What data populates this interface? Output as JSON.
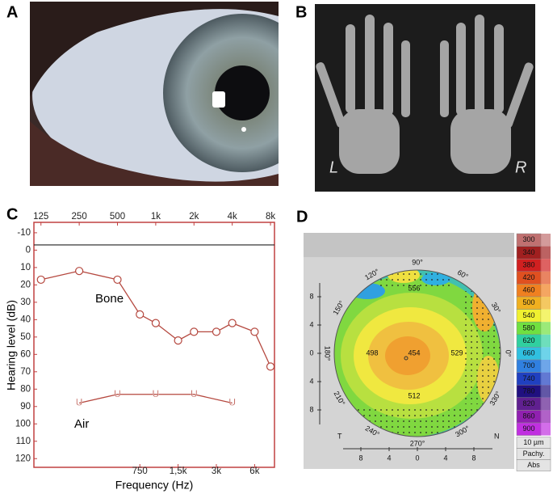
{
  "panels": {
    "A": {
      "label": "A"
    },
    "B": {
      "label": "B",
      "markers": [
        "L",
        "R"
      ]
    },
    "C": {
      "label": "C"
    },
    "D": {
      "label": "D"
    }
  },
  "chart_data": {
    "type": "line",
    "xlabel": "Frequency (Hz)",
    "ylabel": "Hearing level (dB)",
    "xlog": true,
    "xlim": [
      110,
      8600
    ],
    "ylim": [
      -16,
      125
    ],
    "xticks": [
      125,
      250,
      500,
      {
        "value": 1000,
        "label": "1k"
      },
      {
        "value": 2000,
        "label": "2k"
      },
      {
        "value": 4000,
        "label": "4k"
      },
      {
        "value": 8000,
        "label": "8k"
      }
    ],
    "xticks_bottom": [
      750,
      {
        "value": 1500,
        "label": "1,5k"
      },
      {
        "value": 3000,
        "label": "3k"
      },
      {
        "value": 6000,
        "label": "6k"
      }
    ],
    "yticks": [
      -10,
      0,
      10,
      20,
      30,
      40,
      50,
      60,
      70,
      80,
      90,
      100,
      110,
      120
    ],
    "hline": -3,
    "series": [
      {
        "name": "Bone",
        "color": "#b5483f",
        "marker": "circle",
        "x": [
          125,
          250,
          500,
          750,
          1000,
          1500,
          2000,
          3000,
          4000,
          6000,
          8000
        ],
        "values": [
          17,
          12,
          17,
          37,
          42,
          52,
          47,
          47,
          42,
          47,
          67
        ]
      },
      {
        "name": "Air",
        "color": "#b5483f",
        "marker": "U",
        "x": [
          250,
          500,
          1000,
          2000,
          4000
        ],
        "values": [
          88,
          83,
          83,
          83,
          88
        ]
      }
    ]
  },
  "pachymetry": {
    "xlim": [
      -12,
      12
    ],
    "ylim": [
      -12,
      12
    ],
    "xticks": [
      {
        "value": -8,
        "label": "8"
      },
      {
        "value": -4,
        "label": "4"
      },
      0,
      4,
      8
    ],
    "yticks": [
      8,
      4,
      0,
      {
        "value": -4,
        "label": "4"
      },
      {
        "value": -8,
        "label": "8"
      }
    ],
    "sides": [
      "T",
      "N"
    ],
    "angles": [
      "90°",
      "60°",
      "30°",
      "0°",
      "330°",
      "300°",
      "270°",
      "240°",
      "210°",
      "180°",
      "150°",
      "120°"
    ],
    "readings": [
      556,
      498,
      454,
      529,
      512
    ],
    "scale": [
      300,
      340,
      380,
      420,
      460,
      500,
      540,
      580,
      620,
      660,
      700,
      740,
      780,
      820,
      860,
      900
    ],
    "scale_colors": [
      "#c07070",
      "#a02020",
      "#d02020",
      "#e05020",
      "#f08020",
      "#f0b020",
      "#f0f030",
      "#70e040",
      "#30d0a0",
      "#30c0e0",
      "#3080e0",
      "#2040c0",
      "#201080",
      "#602090",
      "#9020b0",
      "#c030e0"
    ],
    "scale_footer": [
      "10 µm",
      "Pachy.",
      "Abs"
    ]
  }
}
